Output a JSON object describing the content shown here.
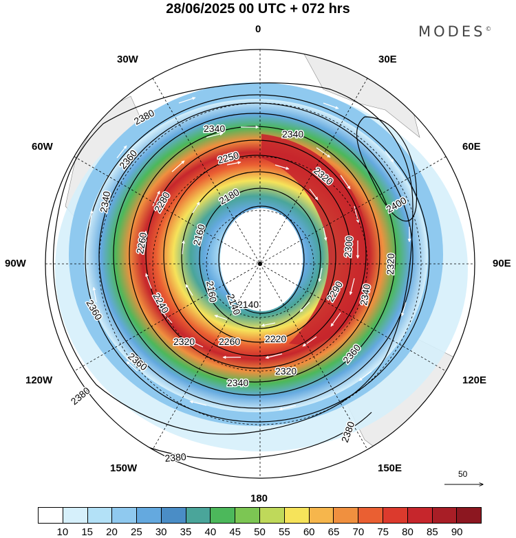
{
  "title": "28/06/2025  00 UTC  + 072 hrs",
  "brand": "MODES",
  "brand_mark": "©",
  "longitude_labels": {
    "lon_0": "0",
    "lon_30e": "30E",
    "lon_60e": "60E",
    "lon_90e": "90E",
    "lon_120e": "120E",
    "lon_150e": "150E",
    "lon_180": "180",
    "lon_150w": "150W",
    "lon_120w": "120W",
    "lon_90w": "90W",
    "lon_60w": "60W",
    "lon_30w": "30W"
  },
  "contour_labels": [
    {
      "text": "2380"
    },
    {
      "text": "2360"
    },
    {
      "text": "2340"
    },
    {
      "text": "2340"
    },
    {
      "text": "2250"
    },
    {
      "text": "2180"
    },
    {
      "text": "2280"
    },
    {
      "text": "2260"
    },
    {
      "text": "2160"
    },
    {
      "text": "2140"
    },
    {
      "text": "2320"
    },
    {
      "text": "2360"
    },
    {
      "text": "2360"
    },
    {
      "text": "2400"
    },
    {
      "text": "2380"
    },
    {
      "text": "2380"
    },
    {
      "text": "2380"
    },
    {
      "text": "2340"
    },
    {
      "text": "2360"
    },
    {
      "text": "2340"
    },
    {
      "text": "2220"
    },
    {
      "text": "2260"
    },
    {
      "text": "2240"
    },
    {
      "text": "2300"
    },
    {
      "text": "2290"
    },
    {
      "text": "2320"
    },
    {
      "text": "2340"
    },
    {
      "text": "2320"
    },
    {
      "text": "2160"
    },
    {
      "text": "2140"
    },
    {
      "text": "2320"
    }
  ],
  "vector_scale": {
    "label": "50"
  },
  "colorbar": {
    "colors": [
      "#ffffff",
      "#d6f0fb",
      "#b3e1f7",
      "#8fc9ef",
      "#64a9df",
      "#4a8dc6",
      "#4aa59a",
      "#4cb85b",
      "#7cc653",
      "#bfd95a",
      "#f6e35a",
      "#f6b64c",
      "#f0903f",
      "#ea5f32",
      "#dc3a2d",
      "#c6262c",
      "#a81e26",
      "#8c1720"
    ],
    "ticks": [
      "10",
      "15",
      "20",
      "25",
      "30",
      "35",
      "40",
      "45",
      "50",
      "55",
      "60",
      "65",
      "70",
      "75",
      "80",
      "85",
      "90"
    ]
  }
}
